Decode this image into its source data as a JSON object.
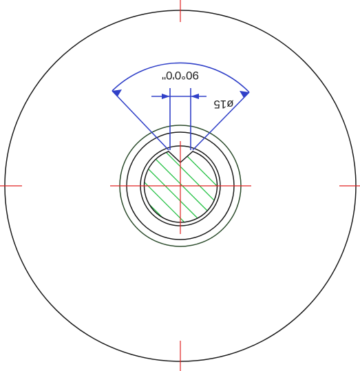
{
  "annotations": {
    "angle": "90°0'0\"",
    "diameter": "ø15"
  }
}
